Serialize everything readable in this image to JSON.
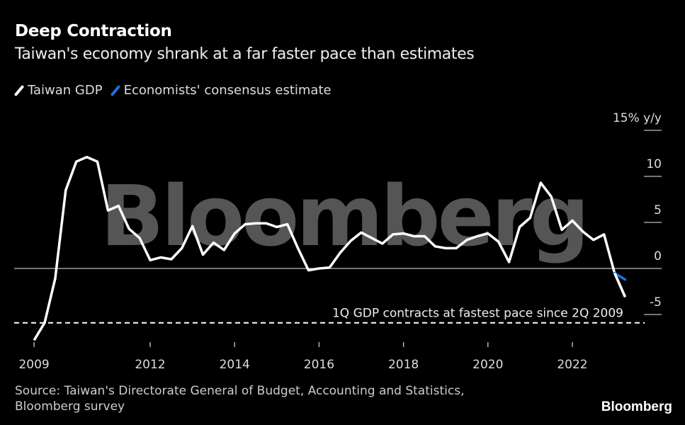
{
  "header": {
    "title": "Deep Contraction",
    "subtitle": "Taiwan's economy shrank at a far faster pace than estimates"
  },
  "footer": {
    "source": "Source: Taiwan's Directorate General of Budget, Accounting and Statistics, Bloomberg survey",
    "logo": "Bloomberg"
  },
  "watermark": "Bloomberg",
  "chart_data": {
    "type": "line",
    "title": "Deep Contraction",
    "subtitle": "Taiwan's economy shrank at a far faster pace than estimates",
    "ylabel": "15% y/y",
    "ylim": [
      -8,
      15
    ],
    "yticks": [
      {
        "value": 15,
        "label": "15% y/y"
      },
      {
        "value": 10,
        "label": "10"
      },
      {
        "value": 5,
        "label": "5"
      },
      {
        "value": 0,
        "label": "0"
      },
      {
        "value": -5,
        "label": "-5"
      }
    ],
    "xticks": [
      {
        "year": 2009,
        "label": "2009",
        "pos": 2009.25
      },
      {
        "year": 2012,
        "label": "2012",
        "pos": 2012
      },
      {
        "year": 2014,
        "label": "2014",
        "pos": 2014
      },
      {
        "year": 2016,
        "label": "2016",
        "pos": 2016
      },
      {
        "year": 2018,
        "label": "2018",
        "pos": 2018
      },
      {
        "year": 2020,
        "label": "2020",
        "pos": 2020
      },
      {
        "year": 2022,
        "label": "2022",
        "pos": 2022
      }
    ],
    "legend_position": "top-left",
    "grid": false,
    "x": [
      "1Q2009",
      "2Q2009",
      "3Q2009",
      "4Q2009",
      "1Q2010",
      "2Q2010",
      "3Q2010",
      "4Q2010",
      "1Q2011",
      "2Q2011",
      "3Q2011",
      "4Q2011",
      "1Q2012",
      "2Q2012",
      "3Q2012",
      "4Q2012",
      "1Q2013",
      "2Q2013",
      "3Q2013",
      "4Q2013",
      "1Q2014",
      "2Q2014",
      "3Q2014",
      "4Q2014",
      "1Q2015",
      "2Q2015",
      "3Q2015",
      "4Q2015",
      "1Q2016",
      "2Q2016",
      "3Q2016",
      "4Q2016",
      "1Q2017",
      "2Q2017",
      "3Q2017",
      "4Q2017",
      "1Q2018",
      "2Q2018",
      "3Q2018",
      "4Q2018",
      "1Q2019",
      "2Q2019",
      "3Q2019",
      "4Q2019",
      "1Q2020",
      "2Q2020",
      "3Q2020",
      "4Q2020",
      "1Q2021",
      "2Q2021",
      "3Q2021",
      "4Q2021",
      "1Q2022",
      "2Q2022",
      "3Q2022",
      "4Q2022",
      "1Q2023"
    ],
    "series": [
      {
        "name": "Taiwan GDP",
        "color": "#ffffff",
        "values": [
          -7.8,
          -5.9,
          -1.1,
          8.5,
          11.6,
          12.1,
          11.6,
          6.3,
          6.8,
          4.3,
          3.3,
          0.9,
          1.2,
          1.0,
          2.2,
          4.6,
          1.5,
          2.8,
          2.0,
          3.8,
          4.8,
          4.9,
          4.9,
          4.5,
          4.8,
          2.2,
          -0.2,
          0.0,
          0.1,
          1.7,
          3.0,
          3.9,
          3.3,
          2.7,
          3.7,
          3.8,
          3.5,
          3.5,
          2.4,
          2.2,
          2.2,
          3.1,
          3.5,
          3.8,
          2.9,
          0.7,
          4.5,
          5.5,
          9.3,
          7.8,
          4.2,
          5.2,
          4.0,
          3.1,
          3.7,
          -0.5,
          -3.1
        ]
      },
      {
        "name": "Economists' consensus estimate",
        "color": "#1f6fe0",
        "x": [
          "4Q2022",
          "1Q2023"
        ],
        "values": [
          -0.5,
          -1.2
        ]
      }
    ],
    "annotations": [
      {
        "text": "1Q GDP contracts at fastest pace since 2Q 2009",
        "value": -5.9
      }
    ]
  }
}
